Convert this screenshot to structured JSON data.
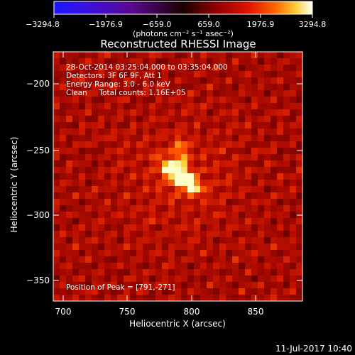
{
  "colorbar": {
    "tick_labels": [
      "−3294.8",
      "−1976.9",
      "−659.0",
      "659.0",
      "1976.9",
      "3294.8"
    ],
    "unit_label": "(photons cm⁻² s⁻¹ asec⁻²)",
    "range": [
      -3294.8,
      3294.8
    ]
  },
  "image": {
    "title": "Reconstructed RHESSI Image",
    "info_lines": [
      "28-Oct-2014 03:25:04.000 to 03:35:04.000",
      "Detectors: 3F 6F 9F, Att 1",
      "Energy Range: 3.0 - 6.0 keV",
      "Clean     Total counts: 1.16E+05"
    ],
    "peak_text": "Position of Peak = [791,-271]",
    "peak": [
      791,
      -271
    ],
    "x_axis": {
      "label": "Heliocentric X (arcsec)",
      "ticks": [
        "700",
        "750",
        "800",
        "850"
      ],
      "range": [
        692,
        886
      ]
    },
    "y_axis": {
      "label": "Heliocentric Y (arcsec)",
      "ticks": [
        "−200",
        "−250",
        "−300",
        "−350"
      ],
      "range": [
        -368,
        -174
      ]
    },
    "colormap": "red-temperature"
  },
  "footer": {
    "timestamp": "11-Jul-2017 10:40"
  }
}
